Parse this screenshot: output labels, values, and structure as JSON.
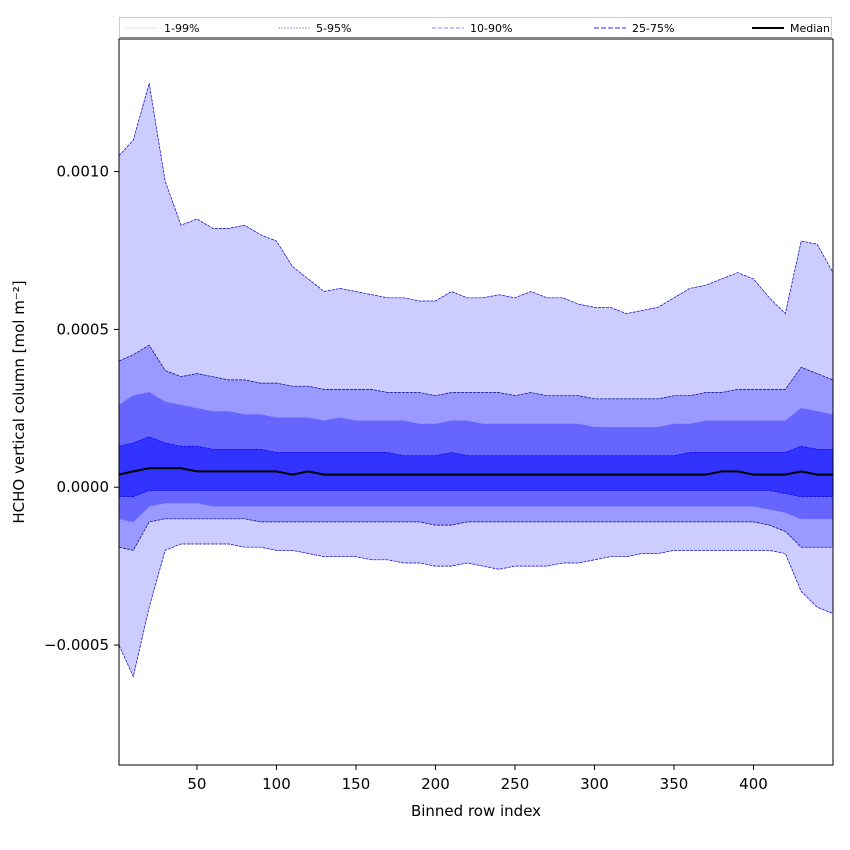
{
  "chart_data": {
    "type": "area",
    "xlabel": "Binned row index",
    "ylabel": "HCHO vertical column [mol m⁻²]",
    "xlim": [
      1,
      450
    ],
    "ylim": [
      -0.00088,
      0.00142
    ],
    "xticks": [
      "50",
      "100",
      "150",
      "200",
      "250",
      "300",
      "350",
      "400"
    ],
    "xtick_values": [
      50,
      100,
      150,
      200,
      250,
      300,
      350,
      400
    ],
    "yticks": [
      "−0.0005",
      "0.0000",
      "0.0005",
      "0.0010"
    ],
    "ytick_values": [
      -0.0005,
      0.0,
      0.0005,
      0.001
    ],
    "grid": false,
    "legend_position": "top, above plot",
    "x": [
      1,
      10,
      20,
      30,
      40,
      50,
      60,
      70,
      80,
      90,
      100,
      110,
      120,
      130,
      140,
      150,
      160,
      170,
      180,
      190,
      200,
      210,
      220,
      230,
      240,
      250,
      260,
      270,
      280,
      290,
      300,
      310,
      320,
      330,
      340,
      350,
      360,
      370,
      380,
      390,
      400,
      410,
      420,
      430,
      440,
      450
    ],
    "series": [
      {
        "name": "Median",
        "color": "#000000",
        "values": [
          4e-05,
          5e-05,
          6e-05,
          6e-05,
          6e-05,
          5e-05,
          5e-05,
          5e-05,
          5e-05,
          5e-05,
          5e-05,
          4e-05,
          5e-05,
          4e-05,
          4e-05,
          4e-05,
          4e-05,
          4e-05,
          4e-05,
          4e-05,
          4e-05,
          4e-05,
          4e-05,
          4e-05,
          4e-05,
          4e-05,
          4e-05,
          4e-05,
          4e-05,
          4e-05,
          4e-05,
          4e-05,
          4e-05,
          4e-05,
          4e-05,
          4e-05,
          4e-05,
          4e-05,
          5e-05,
          5e-05,
          4e-05,
          4e-05,
          4e-05,
          5e-05,
          4e-05,
          4e-05
        ]
      },
      {
        "name": "25-75%",
        "color": "#0000ff",
        "fill": "#3333ff",
        "lower": [
          -3e-05,
          -3e-05,
          -1e-05,
          -1e-05,
          -1e-05,
          -1e-05,
          -1e-05,
          -1e-05,
          -1e-05,
          -1e-05,
          -1e-05,
          -1e-05,
          -1e-05,
          -1e-05,
          -1e-05,
          -1e-05,
          -1e-05,
          -1e-05,
          -1e-05,
          -1e-05,
          -1e-05,
          -1e-05,
          -1e-05,
          -1e-05,
          -1e-05,
          -1e-05,
          -1e-05,
          -1e-05,
          -1e-05,
          -1e-05,
          -1e-05,
          -1e-05,
          -1e-05,
          -1e-05,
          -1e-05,
          -1e-05,
          -1e-05,
          -1e-05,
          -1e-05,
          -1e-05,
          -1e-05,
          -1e-05,
          -2e-05,
          -3e-05,
          -3e-05,
          -3e-05
        ],
        "upper": [
          0.00013,
          0.00014,
          0.00016,
          0.00014,
          0.00013,
          0.00013,
          0.00012,
          0.00012,
          0.00012,
          0.00012,
          0.00011,
          0.00011,
          0.00011,
          0.00011,
          0.00011,
          0.00011,
          0.00011,
          0.00011,
          0.0001,
          0.0001,
          0.0001,
          0.00011,
          0.0001,
          0.0001,
          0.0001,
          0.0001,
          0.0001,
          0.0001,
          0.0001,
          0.0001,
          0.0001,
          0.0001,
          0.0001,
          0.0001,
          0.0001,
          0.0001,
          0.00011,
          0.00011,
          0.00011,
          0.00011,
          0.00011,
          0.00011,
          0.00011,
          0.00013,
          0.00012,
          0.00012
        ]
      },
      {
        "name": "10-90%",
        "color": "#6666ff",
        "fill": "#6666ff",
        "lower": [
          -0.0001,
          -0.00011,
          -6e-05,
          -5e-05,
          -5e-05,
          -5e-05,
          -6e-05,
          -6e-05,
          -6e-05,
          -6e-05,
          -6e-05,
          -6e-05,
          -6e-05,
          -6e-05,
          -6e-05,
          -6e-05,
          -6e-05,
          -6e-05,
          -6e-05,
          -6e-05,
          -6e-05,
          -6e-05,
          -6e-05,
          -6e-05,
          -6e-05,
          -6e-05,
          -6e-05,
          -6e-05,
          -6e-05,
          -6e-05,
          -6e-05,
          -6e-05,
          -6e-05,
          -6e-05,
          -6e-05,
          -6e-05,
          -6e-05,
          -6e-05,
          -6e-05,
          -6e-05,
          -6e-05,
          -7e-05,
          -8e-05,
          -0.0001,
          -0.0001,
          -0.0001
        ],
        "upper": [
          0.00026,
          0.00029,
          0.0003,
          0.00027,
          0.00026,
          0.00025,
          0.00024,
          0.00024,
          0.00023,
          0.00023,
          0.00022,
          0.00022,
          0.00022,
          0.00021,
          0.00022,
          0.00021,
          0.00021,
          0.00021,
          0.00021,
          0.0002,
          0.0002,
          0.00021,
          0.00021,
          0.0002,
          0.0002,
          0.0002,
          0.0002,
          0.0002,
          0.0002,
          0.0002,
          0.00019,
          0.00019,
          0.00019,
          0.00019,
          0.00019,
          0.0002,
          0.0002,
          0.00021,
          0.00021,
          0.00021,
          0.00021,
          0.00021,
          0.00021,
          0.00025,
          0.00024,
          0.00023
        ]
      },
      {
        "name": "5-95%",
        "color": "#000088",
        "fill": "#9999ff",
        "lower": [
          -0.00019,
          -0.0002,
          -0.00011,
          -0.0001,
          -0.0001,
          -0.0001,
          -0.0001,
          -0.0001,
          -0.0001,
          -0.00011,
          -0.00011,
          -0.00011,
          -0.00011,
          -0.00011,
          -0.00011,
          -0.00011,
          -0.00011,
          -0.00011,
          -0.00011,
          -0.00011,
          -0.00012,
          -0.00012,
          -0.00011,
          -0.00011,
          -0.00011,
          -0.00011,
          -0.00011,
          -0.00011,
          -0.00011,
          -0.00011,
          -0.00011,
          -0.00011,
          -0.00011,
          -0.00011,
          -0.00011,
          -0.00011,
          -0.00011,
          -0.00011,
          -0.00011,
          -0.00011,
          -0.00011,
          -0.00012,
          -0.00014,
          -0.00019,
          -0.00019,
          -0.00019
        ],
        "upper": [
          0.0004,
          0.00042,
          0.00045,
          0.00037,
          0.00035,
          0.00036,
          0.00035,
          0.00034,
          0.00034,
          0.00033,
          0.00033,
          0.00032,
          0.00032,
          0.00031,
          0.00031,
          0.00031,
          0.00031,
          0.0003,
          0.0003,
          0.0003,
          0.00029,
          0.0003,
          0.0003,
          0.0003,
          0.0003,
          0.00029,
          0.0003,
          0.00029,
          0.00029,
          0.00029,
          0.00028,
          0.00028,
          0.00028,
          0.00028,
          0.00028,
          0.00029,
          0.00029,
          0.0003,
          0.0003,
          0.00031,
          0.00031,
          0.00031,
          0.00031,
          0.00038,
          0.00036,
          0.00034
        ]
      },
      {
        "name": "1-99%",
        "color": "#0000cc",
        "fill": "#ccccff",
        "lower": [
          -0.0005,
          -0.0006,
          -0.00038,
          -0.0002,
          -0.00018,
          -0.00018,
          -0.00018,
          -0.00018,
          -0.00019,
          -0.00019,
          -0.0002,
          -0.0002,
          -0.00021,
          -0.00022,
          -0.00022,
          -0.00022,
          -0.00023,
          -0.00023,
          -0.00024,
          -0.00024,
          -0.00025,
          -0.00025,
          -0.00024,
          -0.00025,
          -0.00026,
          -0.00025,
          -0.00025,
          -0.00025,
          -0.00024,
          -0.00024,
          -0.00023,
          -0.00022,
          -0.00022,
          -0.00021,
          -0.00021,
          -0.0002,
          -0.0002,
          -0.0002,
          -0.0002,
          -0.0002,
          -0.0002,
          -0.0002,
          -0.00021,
          -0.00033,
          -0.00038,
          -0.0004
        ],
        "upper": [
          0.00105,
          0.0011,
          0.00128,
          0.00097,
          0.00083,
          0.00085,
          0.00082,
          0.00082,
          0.00083,
          0.0008,
          0.00078,
          0.0007,
          0.00066,
          0.00062,
          0.00063,
          0.00062,
          0.00061,
          0.0006,
          0.0006,
          0.00059,
          0.00059,
          0.00062,
          0.0006,
          0.0006,
          0.00061,
          0.0006,
          0.00062,
          0.0006,
          0.0006,
          0.00058,
          0.00057,
          0.00057,
          0.00055,
          0.00056,
          0.00057,
          0.0006,
          0.00063,
          0.00064,
          0.00066,
          0.00068,
          0.00066,
          0.0006,
          0.00055,
          0.00078,
          0.00077,
          0.00068
        ]
      }
    ]
  },
  "legend": {
    "items": [
      {
        "label": "1-99%",
        "color": "#bbbbee",
        "dash": "1,1",
        "width": 0.7
      },
      {
        "label": "5-95%",
        "color": "#7777cc",
        "dash": "2,1",
        "width": 0.7
      },
      {
        "label": "10-90%",
        "color": "#8888ff",
        "dash": "4,2",
        "width": 1
      },
      {
        "label": "25-75%",
        "color": "#5555ff",
        "dash": "5,2",
        "width": 1.2
      },
      {
        "label": "Median",
        "color": "#000000",
        "dash": "",
        "width": 2
      }
    ]
  }
}
